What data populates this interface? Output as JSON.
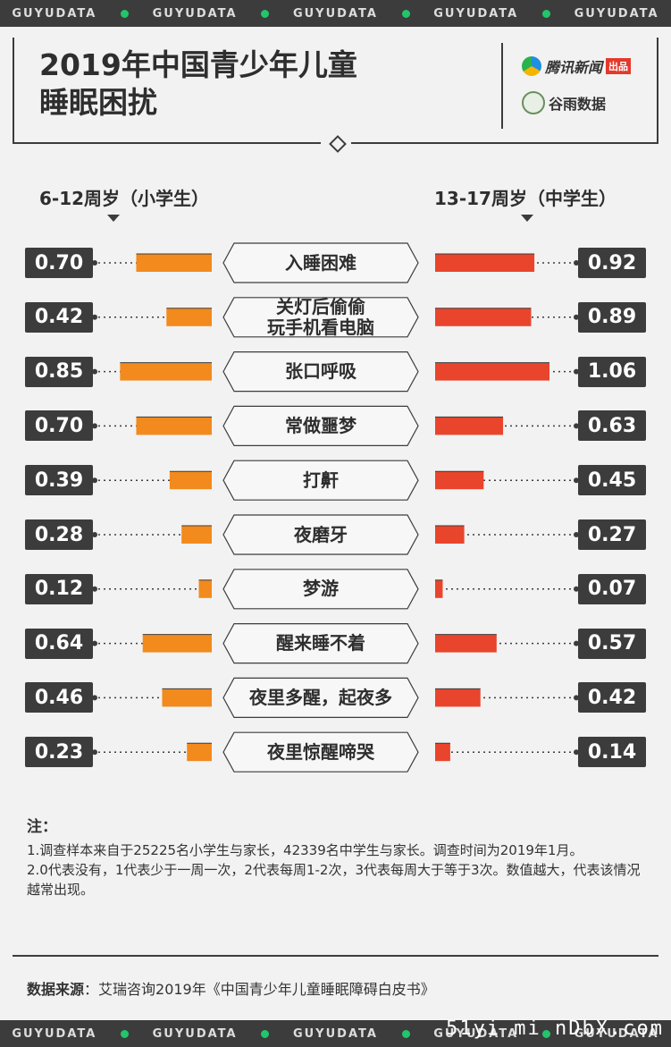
{
  "band_text": "GUYUDATA",
  "title_lines": [
    "2019年中国青少年儿童",
    "睡眠困扰"
  ],
  "brands": {
    "tencent": "腾讯新闻",
    "tencent_chip": "出品",
    "guyu": "谷雨数据"
  },
  "headers": {
    "left": "6-12周岁（小学生）",
    "right": "13-17周岁（中学生）"
  },
  "colors": {
    "left_bar": "#f28a1d",
    "right_bar": "#e8452c",
    "box": "#3c3c3c"
  },
  "chart_data": {
    "type": "bar",
    "categories": [
      "入睡困难",
      "关灯后偷偷\n玩手机看电脑",
      "张口呼吸",
      "常做噩梦",
      "打鼾",
      "夜磨牙",
      "梦游",
      "醒来睡不着",
      "夜里多醒，起夜多",
      "夜里惊醒啼哭"
    ],
    "series": [
      {
        "name": "6-12周岁（小学生）",
        "values": [
          0.7,
          0.42,
          0.85,
          0.7,
          0.39,
          0.28,
          0.12,
          0.64,
          0.46,
          0.23
        ],
        "labels": [
          "0.70",
          "0.42",
          "0.85",
          "0.70",
          "0.39",
          "0.28",
          "0.12",
          "0.64",
          "0.46",
          "0.23"
        ]
      },
      {
        "name": "13-17周岁（中学生）",
        "values": [
          0.92,
          0.89,
          1.06,
          0.63,
          0.45,
          0.27,
          0.07,
          0.57,
          0.42,
          0.14
        ],
        "labels": [
          "0.92",
          "0.89",
          "1.06",
          "0.63",
          "0.45",
          "0.27",
          "0.07",
          "0.57",
          "0.42",
          "0.14"
        ]
      }
    ]
  },
  "notes": {
    "title": "注：",
    "items": [
      "1.调查样本来自于25225名小学生与家长，42339名中学生与家长。调查时间为2019年1月。",
      "2.0代表没有，1代表少于一周一次，2代表每周1-2次，3代表每周大于等于3次。数值越大，代表该情况越常出现。"
    ]
  },
  "source": {
    "label": "数据来源",
    "text": "：艾瑞咨询2019年《中国青少年儿童睡眠障碍白皮书》"
  },
  "watermark": "51yi mi nDbX.com"
}
